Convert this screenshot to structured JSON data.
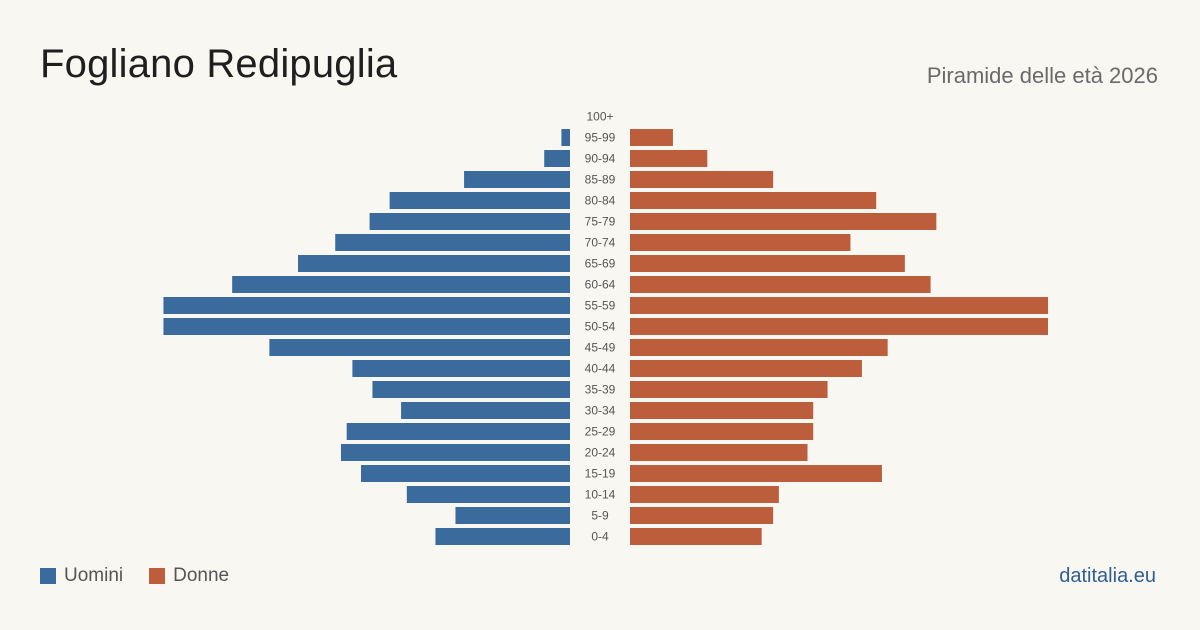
{
  "header": {
    "title": "Fogliano Redipuglia",
    "subtitle": "Piramide delle età 2026"
  },
  "legend": {
    "men_label": "Uomini",
    "women_label": "Donne",
    "men_color": "#3b6a9c",
    "women_color": "#bc5e3c"
  },
  "footer": {
    "source": "datitalia.eu"
  },
  "chart_data": {
    "type": "bar",
    "orientation": "horizontal-population-pyramid",
    "categories": [
      "100+",
      "95-99",
      "90-94",
      "85-89",
      "80-84",
      "75-79",
      "70-74",
      "65-69",
      "60-64",
      "55-59",
      "50-54",
      "45-49",
      "40-44",
      "35-39",
      "30-34",
      "25-29",
      "20-24",
      "15-19",
      "10-14",
      "5-9",
      "0-4"
    ],
    "series": [
      {
        "name": "Uomini",
        "values": [
          0,
          3,
          9,
          37,
          63,
          70,
          82,
          95,
          118,
          142,
          142,
          105,
          76,
          69,
          59,
          78,
          80,
          73,
          57,
          40,
          47
        ]
      },
      {
        "name": "Donne",
        "values": [
          0,
          15,
          27,
          50,
          86,
          107,
          77,
          96,
          105,
          146,
          146,
          90,
          81,
          69,
          64,
          64,
          62,
          88,
          52,
          50,
          46
        ]
      }
    ],
    "grid": false,
    "legend_position": "bottom-left"
  }
}
